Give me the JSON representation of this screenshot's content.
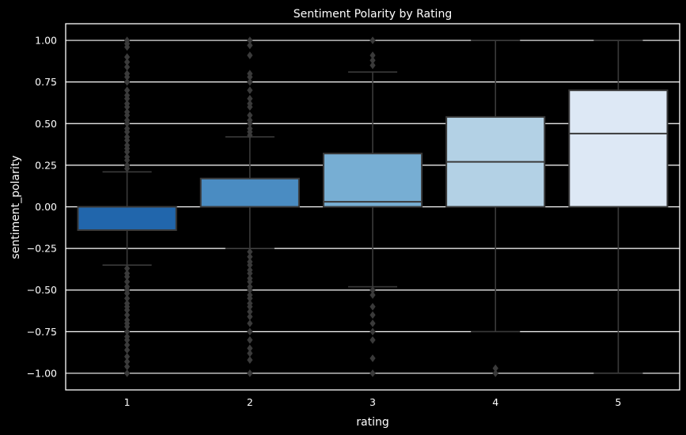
{
  "chart_data": {
    "type": "box",
    "title": "Sentiment Polarity by Rating",
    "xlabel": "rating",
    "ylabel": "sentiment_polarity",
    "ylim": [
      -1.1,
      1.1
    ],
    "yticks": [
      1.0,
      0.75,
      0.5,
      0.25,
      0.0,
      -0.25,
      -0.5,
      -0.75,
      -1.0
    ],
    "ytick_labels": [
      "1.00",
      "0.75",
      "0.50",
      "0.25",
      "0.00",
      "−0.25",
      "−0.50",
      "−0.75",
      "−1.00"
    ],
    "grid": true,
    "background": "#000000",
    "grid_color": "#ffffff",
    "line_color": "#3a3a3a",
    "categories": [
      "1",
      "2",
      "3",
      "4",
      "5"
    ],
    "boxes": [
      {
        "rating": "1",
        "color": "#2166ac",
        "q1": -0.14,
        "median": 0.0,
        "q3": 0.0,
        "whisker_low": -0.35,
        "whisker_high": 0.21,
        "outliers": [
          1.0,
          0.98,
          0.96,
          0.9,
          0.87,
          0.84,
          0.8,
          0.78,
          0.75,
          0.7,
          0.67,
          0.65,
          0.62,
          0.6,
          0.57,
          0.55,
          0.52,
          0.5,
          0.47,
          0.45,
          0.42,
          0.4,
          0.37,
          0.35,
          0.33,
          0.3,
          0.28,
          0.25,
          0.23,
          -0.37,
          -0.4,
          -0.42,
          -0.45,
          -0.48,
          -0.5,
          -0.52,
          -0.55,
          -0.58,
          -0.6,
          -0.62,
          -0.65,
          -0.68,
          -0.7,
          -0.72,
          -0.75,
          -0.78,
          -0.8,
          -0.83,
          -0.86,
          -0.9,
          -0.93,
          -0.96,
          -1.0
        ]
      },
      {
        "rating": "2",
        "color": "#4a8cc2",
        "q1": 0.0,
        "median": 0.0,
        "q3": 0.17,
        "whisker_low": -0.25,
        "whisker_high": 0.42,
        "outliers": [
          1.0,
          0.97,
          0.91,
          0.8,
          0.78,
          0.75,
          0.7,
          0.65,
          0.62,
          0.6,
          0.55,
          0.52,
          0.5,
          0.47,
          0.45,
          0.43,
          -0.27,
          -0.3,
          -0.33,
          -0.35,
          -0.38,
          -0.4,
          -0.43,
          -0.45,
          -0.48,
          -0.5,
          -0.53,
          -0.55,
          -0.58,
          -0.6,
          -0.63,
          -0.66,
          -0.7,
          -0.75,
          -0.8,
          -0.85,
          -0.88,
          -0.92,
          -1.0
        ]
      },
      {
        "rating": "3",
        "color": "#77aed3",
        "q1": 0.0,
        "median": 0.03,
        "q3": 0.32,
        "whisker_low": -0.48,
        "whisker_high": 0.81,
        "outliers": [
          1.0,
          0.91,
          0.88,
          0.85,
          -0.5,
          -0.53,
          -0.6,
          -0.65,
          -0.7,
          -0.75,
          -0.8,
          -0.91,
          -1.0
        ]
      },
      {
        "rating": "4",
        "color": "#b3d1e5",
        "q1": 0.0,
        "median": 0.27,
        "q3": 0.54,
        "whisker_low": -0.75,
        "whisker_high": 1.0,
        "outliers": [
          -0.97,
          -1.0
        ]
      },
      {
        "rating": "5",
        "color": "#dde8f5",
        "q1": 0.0,
        "median": 0.44,
        "q3": 0.7,
        "whisker_low": -1.0,
        "whisker_high": 1.0,
        "outliers": []
      }
    ]
  }
}
